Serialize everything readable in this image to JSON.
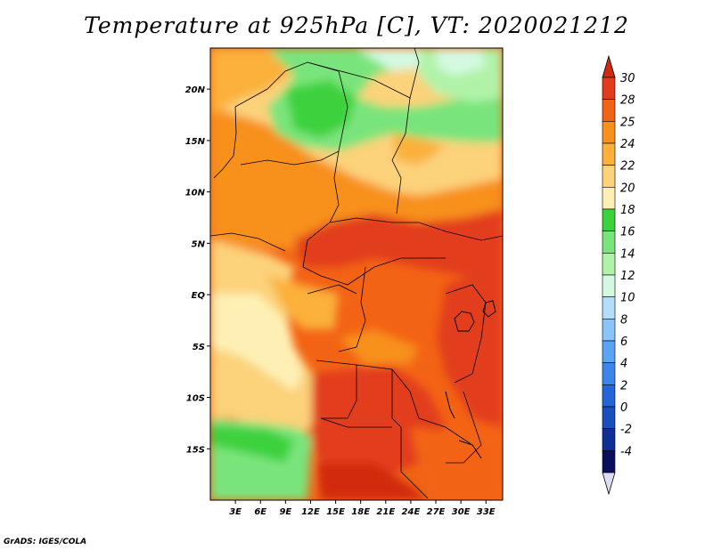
{
  "title": "Temperature at 925hPa [C], VT: 2020021212",
  "credit": "GrADS: IGES/COLA",
  "map": {
    "lat_range": [
      -20,
      24
    ],
    "lon_range": [
      0,
      35
    ],
    "lat_ticks": [
      {
        "value": 20,
        "label": "20N"
      },
      {
        "value": 15,
        "label": "15N"
      },
      {
        "value": 10,
        "label": "10N"
      },
      {
        "value": 5,
        "label": "5N"
      },
      {
        "value": 0,
        "label": "EQ"
      },
      {
        "value": -5,
        "label": "5S"
      },
      {
        "value": -10,
        "label": "10S"
      },
      {
        "value": -15,
        "label": "15S"
      }
    ],
    "lon_ticks": [
      {
        "value": 3,
        "label": "3E"
      },
      {
        "value": 6,
        "label": "6E"
      },
      {
        "value": 9,
        "label": "9E"
      },
      {
        "value": 12,
        "label": "12E"
      },
      {
        "value": 15,
        "label": "15E"
      },
      {
        "value": 18,
        "label": "18E"
      },
      {
        "value": 21,
        "label": "21E"
      },
      {
        "value": 24,
        "label": "24E"
      },
      {
        "value": 27,
        "label": "27E"
      },
      {
        "value": 30,
        "label": "30E"
      },
      {
        "value": 33,
        "label": "33E"
      }
    ]
  },
  "colorbar": {
    "labels": [
      "30",
      "28",
      "25",
      "24",
      "22",
      "20",
      "18",
      "16",
      "14",
      "12",
      "10",
      "8",
      "6",
      "4",
      "2",
      "0",
      "-2",
      "-4"
    ],
    "colors": [
      "#e23c1c",
      "#f36315",
      "#f8901f",
      "#fbb13a",
      "#fcd27a",
      "#fef0b4",
      "#3dd13e",
      "#7ae47c",
      "#b0f3a8",
      "#d4f9e0",
      "#b4dcfb",
      "#8ac4fa",
      "#5ba4f3",
      "#3c86e9",
      "#2466d7",
      "#1a4ebf",
      "#0f2f96",
      "#08105c"
    ],
    "top_color": "#d22a10",
    "bottom_color": "#dcdcf8"
  }
}
